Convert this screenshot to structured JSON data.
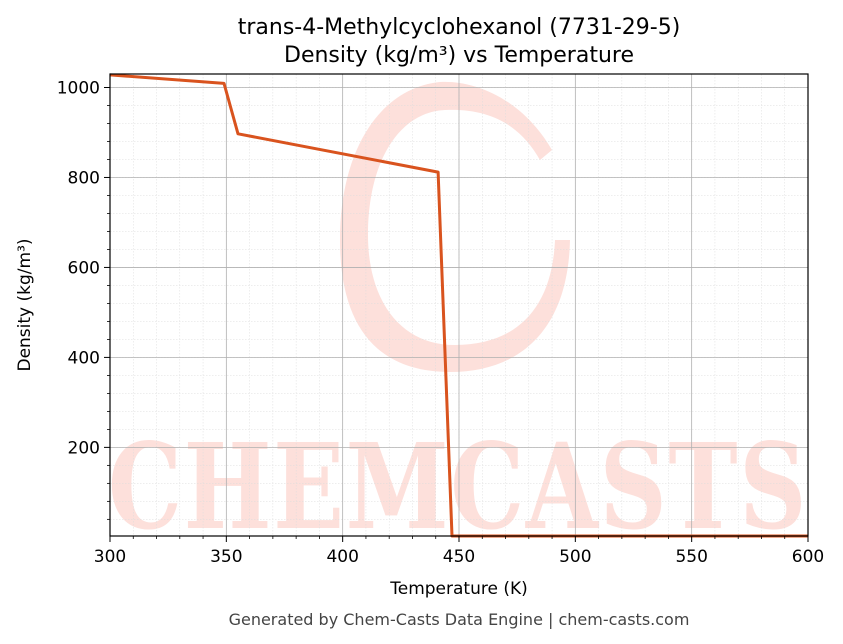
{
  "chart_data": {
    "type": "line",
    "title": "trans-4-Methylcyclohexanol (7731-29-5)",
    "subtitle": "Density (kg/m³) vs Temperature",
    "xlabel": "Temperature (K)",
    "ylabel": "Density (kg/m³)",
    "xlim": [
      300,
      600
    ],
    "ylim": [
      3,
      1030
    ],
    "xticks": [
      300,
      350,
      400,
      450,
      500,
      550,
      600
    ],
    "yticks": [
      200,
      400,
      600,
      800,
      1000
    ],
    "grid": true,
    "series": [
      {
        "color": "#d9531e",
        "x": [
          300,
          349,
          355,
          441,
          447,
          600
        ],
        "y": [
          1028,
          1009,
          897,
          812,
          3,
          3
        ]
      }
    ]
  },
  "watermark": {
    "text": "CHEMCASTS",
    "color": "#fde0db"
  },
  "footer": "Generated by Chem-Casts Data Engine | chem-casts.com"
}
